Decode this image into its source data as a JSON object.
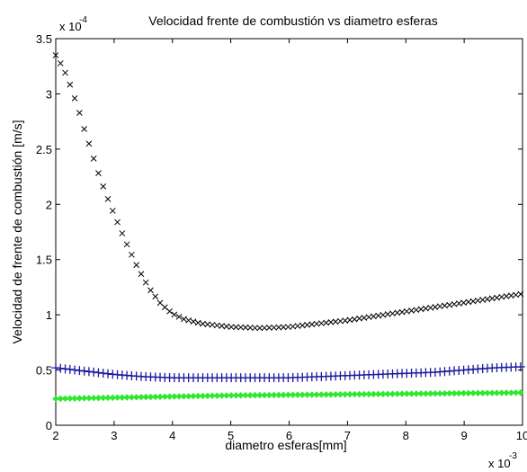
{
  "chart_data": {
    "type": "scatter",
    "title": "Velocidad frente de combustión vs diametro esferas",
    "xlabel": "diametro esferas[mm]",
    "ylabel": "Velocidad de frente de combustión [m/s]",
    "x_scale_label": "x 10",
    "x_scale_exp": "-3",
    "y_scale_label": "x 10",
    "y_scale_exp": "-4",
    "xlim": [
      2,
      10
    ],
    "ylim": [
      0,
      3.5
    ],
    "xticks": [
      2,
      3,
      4,
      5,
      6,
      7,
      8,
      9,
      10
    ],
    "yticks": [
      0,
      0.5,
      1,
      1.5,
      2,
      2.5,
      3,
      3.5
    ],
    "grid": false,
    "series": [
      {
        "marker": "x",
        "color": "#000000",
        "x": [
          2.0,
          2.1,
          2.2,
          2.3,
          2.4,
          2.5,
          2.6,
          2.7,
          2.8,
          2.9,
          3.0,
          3.2,
          3.4,
          3.6,
          3.8,
          4.0,
          4.2,
          4.5,
          5.0,
          5.5,
          6.0,
          6.5,
          7.0,
          7.5,
          8.0,
          8.5,
          9.0,
          9.5,
          10.0
        ],
        "y": [
          3.35,
          3.26,
          3.15,
          3.0,
          2.84,
          2.66,
          2.5,
          2.33,
          2.18,
          2.04,
          1.91,
          1.66,
          1.43,
          1.24,
          1.1,
          1.01,
          0.96,
          0.92,
          0.89,
          0.88,
          0.89,
          0.92,
          0.95,
          0.99,
          1.03,
          1.07,
          1.11,
          1.15,
          1.19
        ]
      },
      {
        "marker": "+",
        "color": "#1a1aa0",
        "x": [
          2.0,
          2.5,
          3.0,
          3.5,
          4.0,
          4.5,
          5.0,
          5.5,
          6.0,
          6.5,
          7.0,
          7.5,
          8.0,
          8.5,
          9.0,
          9.5,
          10.0
        ],
        "y": [
          0.52,
          0.49,
          0.46,
          0.44,
          0.43,
          0.43,
          0.43,
          0.43,
          0.43,
          0.44,
          0.45,
          0.46,
          0.47,
          0.48,
          0.5,
          0.52,
          0.53
        ]
      },
      {
        "marker": "diamond",
        "color": "#2ee82e",
        "x": [
          2.0,
          2.5,
          3.0,
          3.5,
          4.0,
          4.5,
          5.0,
          5.5,
          6.0,
          6.5,
          7.0,
          7.5,
          8.0,
          8.5,
          9.0,
          9.5,
          10.0
        ],
        "y": [
          0.24,
          0.245,
          0.25,
          0.255,
          0.26,
          0.265,
          0.27,
          0.272,
          0.275,
          0.277,
          0.28,
          0.282,
          0.285,
          0.287,
          0.29,
          0.292,
          0.295
        ]
      }
    ]
  }
}
